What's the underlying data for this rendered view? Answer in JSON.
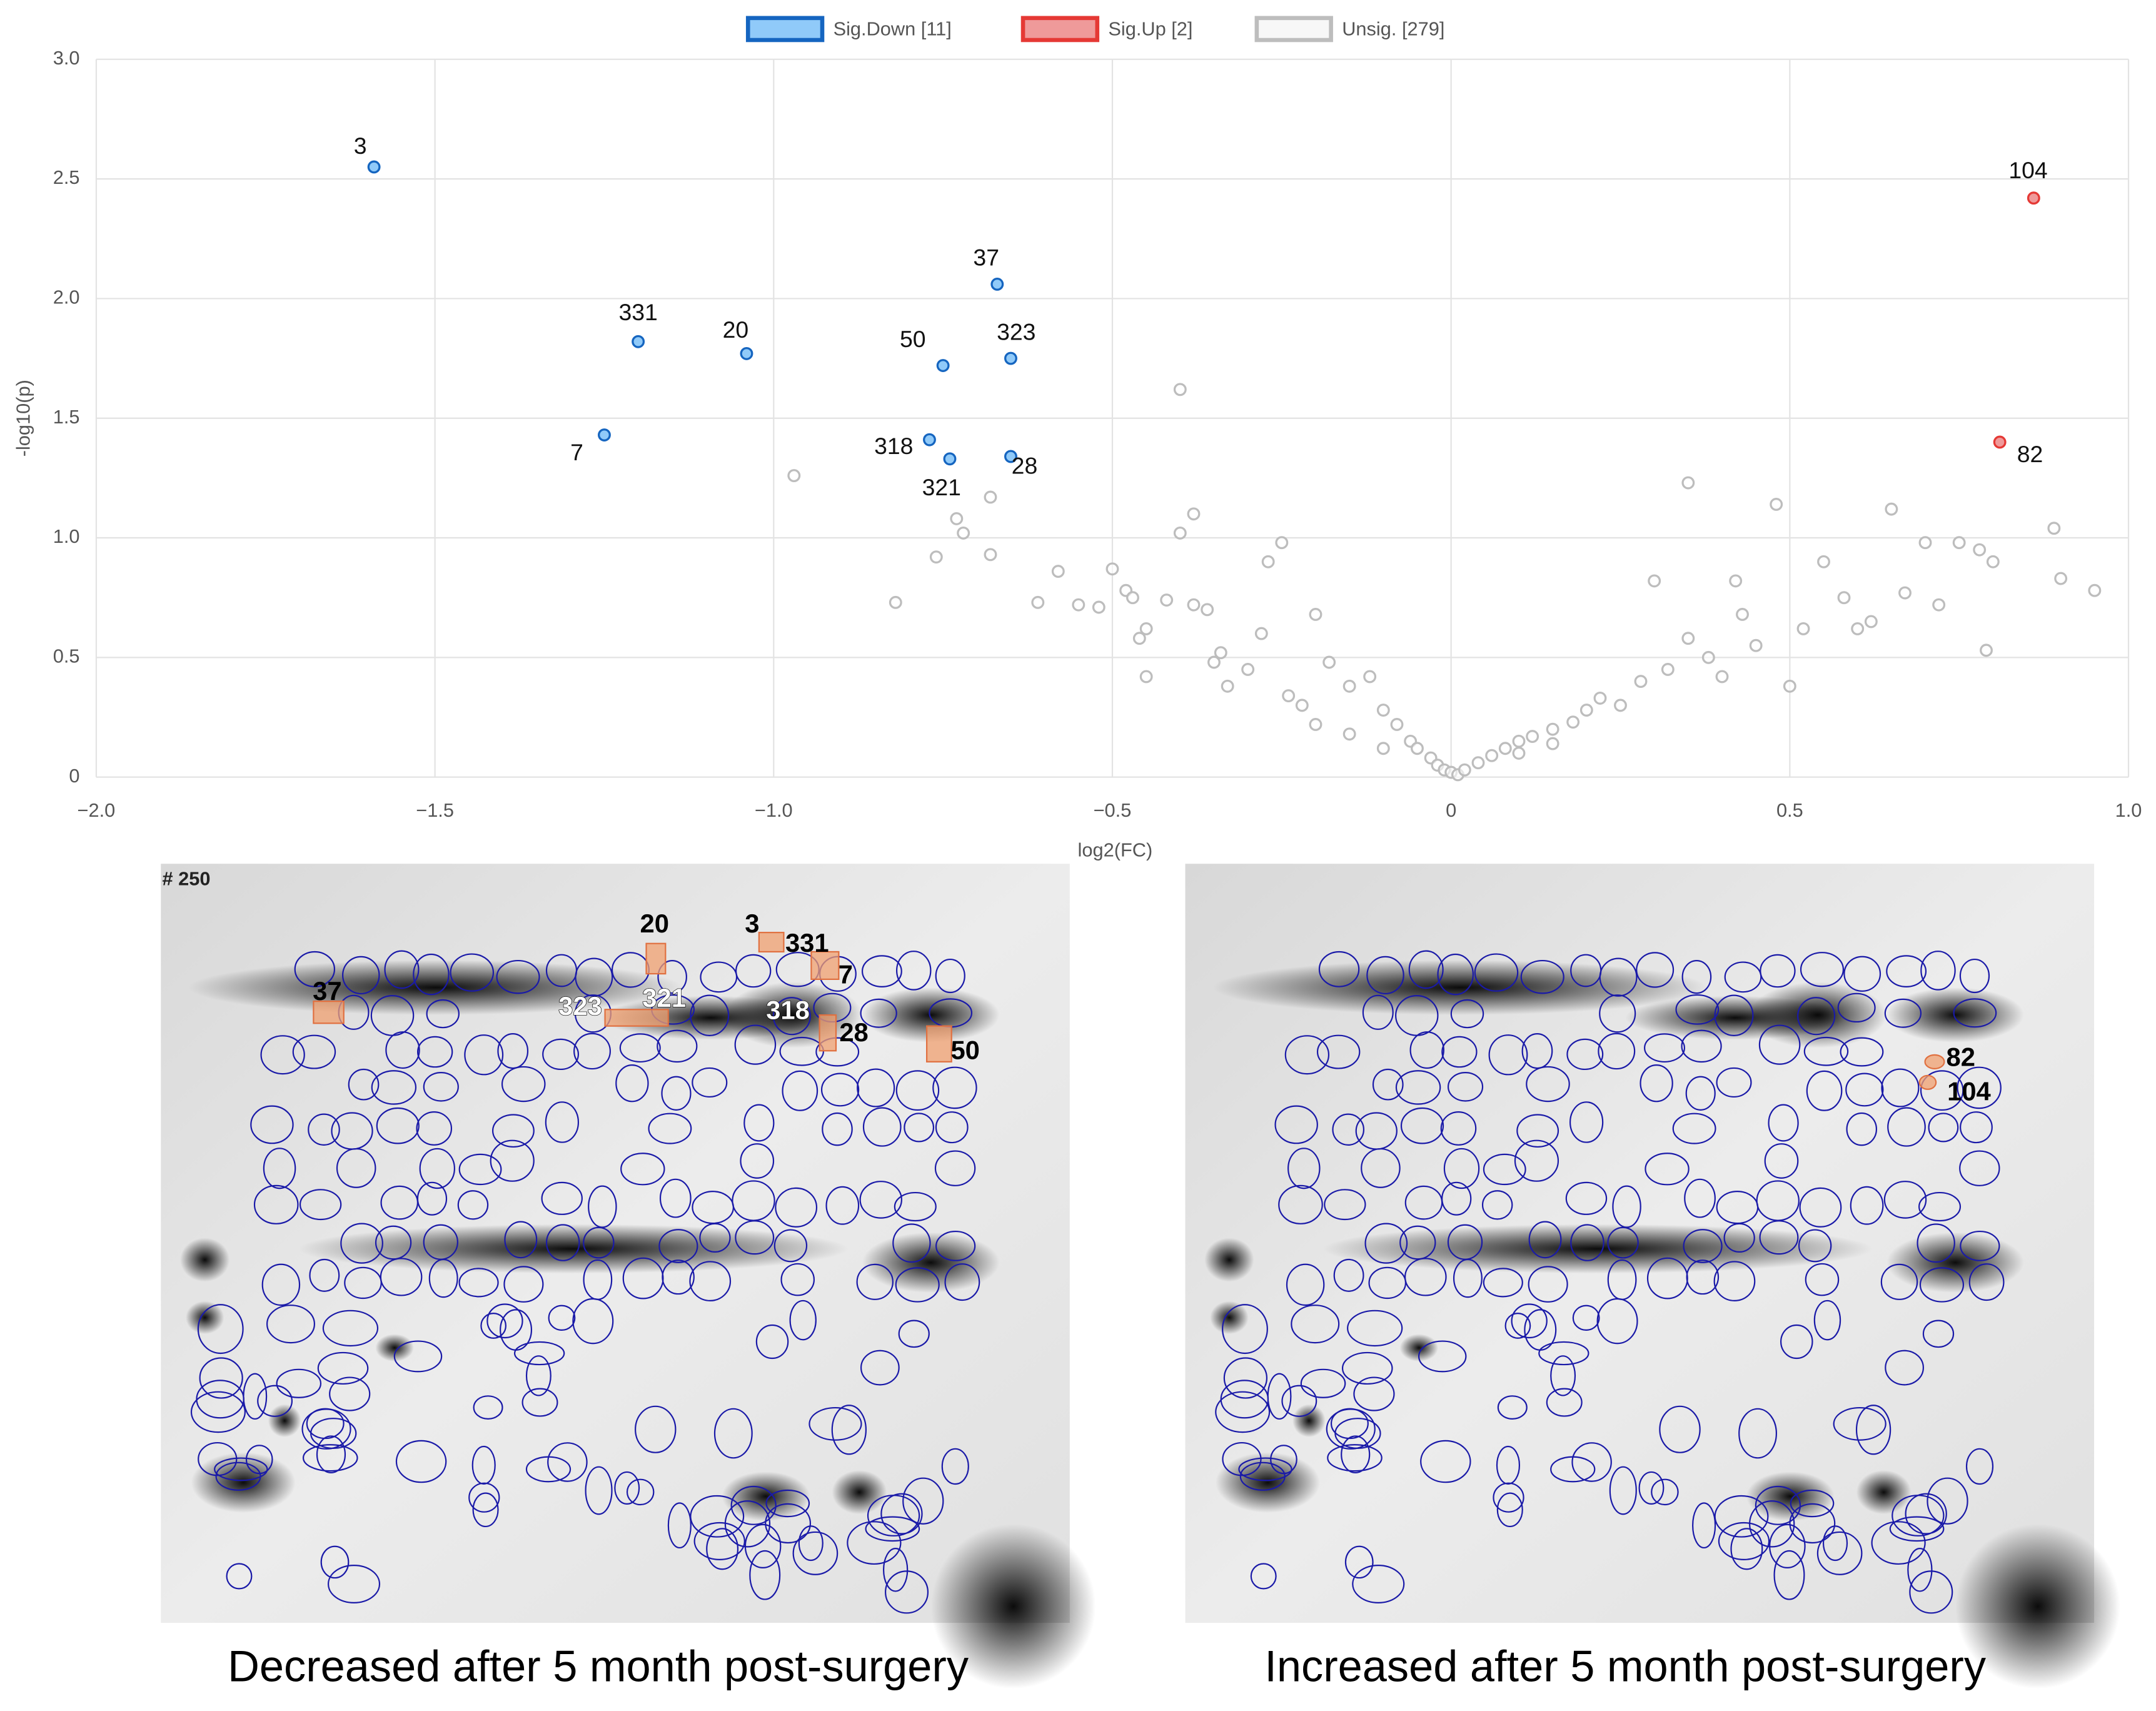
{
  "chart_data": {
    "type": "scatter",
    "x_label": "log2(FC)",
    "y_label": "-log10(p)",
    "xlim": [
      -2,
      1
    ],
    "xticks": [
      {
        "value": -2,
        "label": "−2.0"
      },
      {
        "value": -1.5,
        "label": "−1.5"
      },
      {
        "value": -1,
        "label": "−1.0"
      },
      {
        "value": -0.5,
        "label": "−0.5"
      },
      0,
      0.5,
      {
        "value": 1,
        "label": "1.0"
      }
    ],
    "ylim": [
      0,
      3
    ],
    "yticks": [
      0,
      0.5,
      {
        "value": 1,
        "label": "1.0"
      },
      1.5,
      {
        "value": 2,
        "label": "2.0"
      },
      2.5,
      {
        "value": 3,
        "label": "3.0"
      }
    ],
    "grid": true,
    "legend": "top",
    "series": [
      {
        "name": "Sig.Down [11]",
        "color": "#1565c0",
        "fill": "#90caf9",
        "labels": [
          "3",
          "331",
          "20",
          "7",
          "37",
          "50",
          "323",
          "318",
          "321",
          "28"
        ],
        "x": [
          -1.59,
          -1.2,
          -1.04,
          -1.25,
          -0.67,
          -0.75,
          -0.65,
          -0.77,
          -0.74,
          -0.65
        ],
        "values": [
          2.55,
          1.82,
          1.77,
          1.43,
          2.06,
          1.72,
          1.75,
          1.41,
          1.33,
          1.34
        ]
      },
      {
        "name": "Sig.Up [2]",
        "color": "#e53935",
        "fill": "#ef9a9a",
        "labels": [
          "104",
          "82"
        ],
        "x": [
          0.86,
          0.81
        ],
        "values": [
          2.42,
          1.4
        ]
      },
      {
        "name": "Unsig. [279]",
        "color": "#bdbdbd",
        "fill": "#ffffff",
        "x": [
          -0.97,
          -0.82,
          -0.76,
          -0.73,
          -0.72,
          -0.68,
          -0.68,
          -0.61,
          -0.58,
          -0.55,
          -0.52,
          -0.5,
          -0.48,
          -0.47,
          -0.46,
          -0.45,
          -0.45,
          -0.42,
          -0.4,
          -0.4,
          -0.38,
          -0.38,
          -0.36,
          -0.35,
          -0.34,
          -0.33,
          -0.3,
          -0.28,
          -0.27,
          -0.25,
          -0.24,
          -0.22,
          -0.2,
          -0.2,
          -0.18,
          -0.15,
          -0.15,
          -0.12,
          -0.1,
          -0.1,
          -0.08,
          -0.06,
          -0.05,
          -0.03,
          -0.02,
          -0.01,
          0,
          0.01,
          0.02,
          0.04,
          0.06,
          0.08,
          0.1,
          0.1,
          0.12,
          0.15,
          0.15,
          0.18,
          0.2,
          0.22,
          0.25,
          0.28,
          0.3,
          0.32,
          0.35,
          0.35,
          0.38,
          0.4,
          0.42,
          0.43,
          0.45,
          0.48,
          0.5,
          0.52,
          0.55,
          0.58,
          0.6,
          0.62,
          0.65,
          0.67,
          0.7,
          0.72,
          0.75,
          0.78,
          0.79,
          0.8,
          0.89,
          0.9,
          0.95
        ],
        "values": [
          1.26,
          0.73,
          0.92,
          1.08,
          1.02,
          1.17,
          0.93,
          0.73,
          0.86,
          0.72,
          0.71,
          0.87,
          0.78,
          0.75,
          0.58,
          0.62,
          0.42,
          0.74,
          1.62,
          1.02,
          1.1,
          0.72,
          0.7,
          0.48,
          0.52,
          0.38,
          0.45,
          0.6,
          0.9,
          0.98,
          0.34,
          0.3,
          0.68,
          0.22,
          0.48,
          0.38,
          0.18,
          0.42,
          0.28,
          0.12,
          0.22,
          0.15,
          0.12,
          0.08,
          0.05,
          0.03,
          0.02,
          0.01,
          0.03,
          0.06,
          0.09,
          0.12,
          0.15,
          0.1,
          0.17,
          0.2,
          0.14,
          0.23,
          0.28,
          0.33,
          0.3,
          0.4,
          0.82,
          0.45,
          1.23,
          0.58,
          0.5,
          0.42,
          0.82,
          0.68,
          0.55,
          1.14,
          0.38,
          0.62,
          0.9,
          0.75,
          0.62,
          0.65,
          1.12,
          0.77,
          0.98,
          0.72,
          0.98,
          0.95,
          0.53,
          0.9,
          1.04,
          0.83,
          0.78
        ]
      }
    ]
  },
  "gels": [
    {
      "corner": "# 250",
      "labels": [
        "37",
        "20",
        "3",
        "331",
        "7",
        "323",
        "321",
        "318",
        "28",
        "50"
      ],
      "caption": "Decreased after 5 month post-surgery"
    },
    {
      "labels": [
        "82",
        "104"
      ],
      "caption": "Increased after 5 month post-surgery"
    }
  ]
}
